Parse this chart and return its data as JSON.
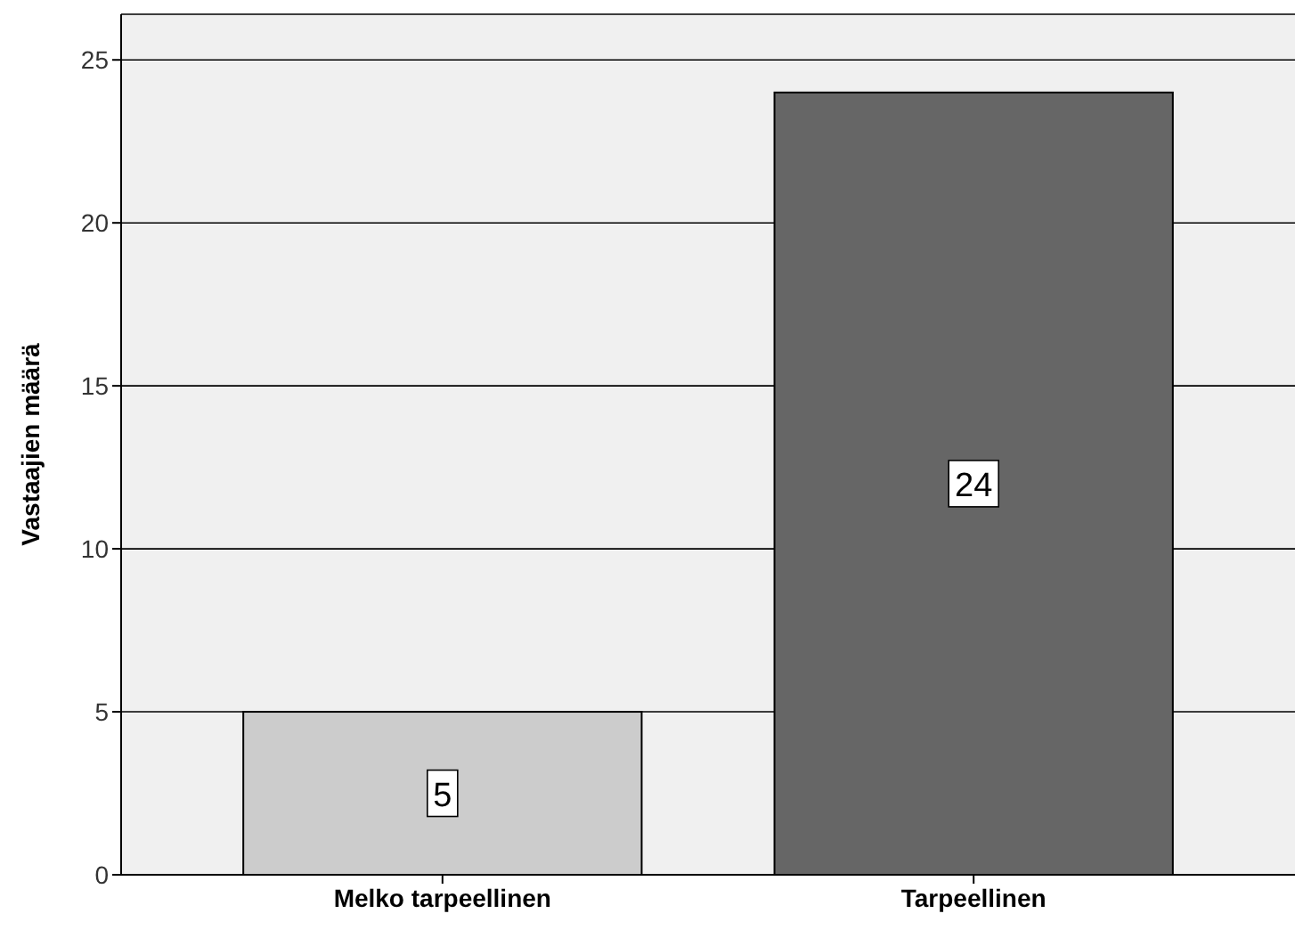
{
  "chart_data": {
    "type": "bar",
    "ylabel": "Vastaajien määrä",
    "categories": [
      "Melko tarpeellinen",
      "Tarpeellinen"
    ],
    "values": [
      5,
      24
    ],
    "colors": [
      "#cccccc",
      "#666666"
    ],
    "ylim": [
      0,
      26.4
    ],
    "yticks": [
      0,
      5,
      10,
      15,
      20,
      25
    ],
    "grid": "y",
    "data_labels": true
  }
}
